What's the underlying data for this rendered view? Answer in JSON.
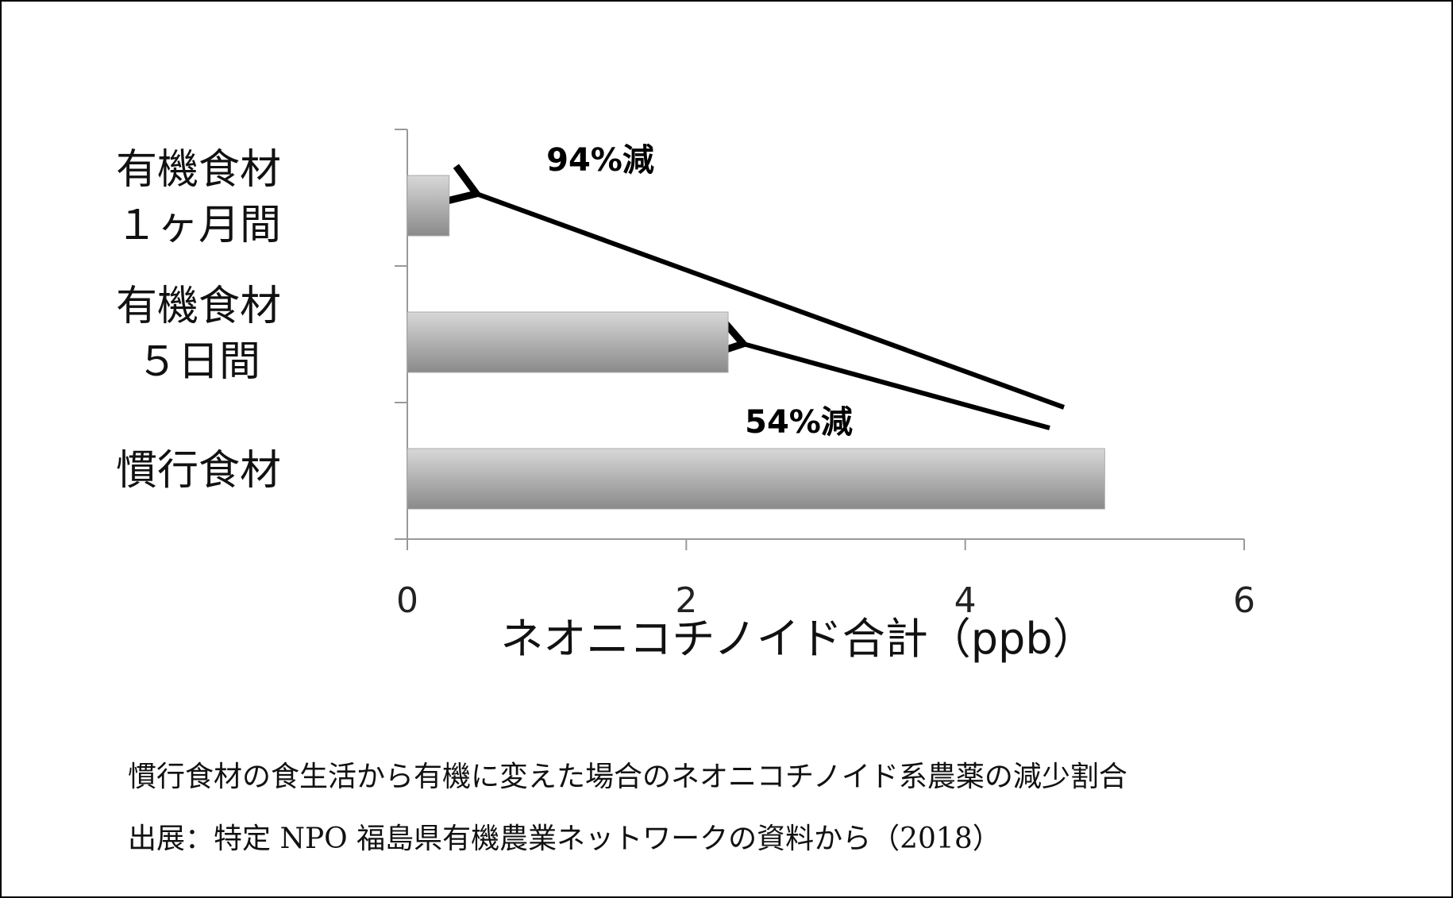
{
  "chart_data": {
    "type": "barh",
    "categories": [
      "有機食材\n１ヶ月間",
      "有機食材\n５日間",
      "慣行食材"
    ],
    "values": [
      0.3,
      2.3,
      5.0
    ],
    "color": "#8a8a8a",
    "xlim": [
      0,
      6
    ],
    "xticks": [
      0,
      2,
      4,
      6
    ],
    "x_label": "ネオニコチノイド合計（ppb）",
    "annotations": [
      "94%減",
      "54%減"
    ],
    "caption": [
      "慣行食材の食生活から有機に変えた場合のネオニコチノイド系農薬の減少割合",
      "出展：特定 NPO 福島県有機農業ネットワークの資料から（2018）"
    ]
  }
}
